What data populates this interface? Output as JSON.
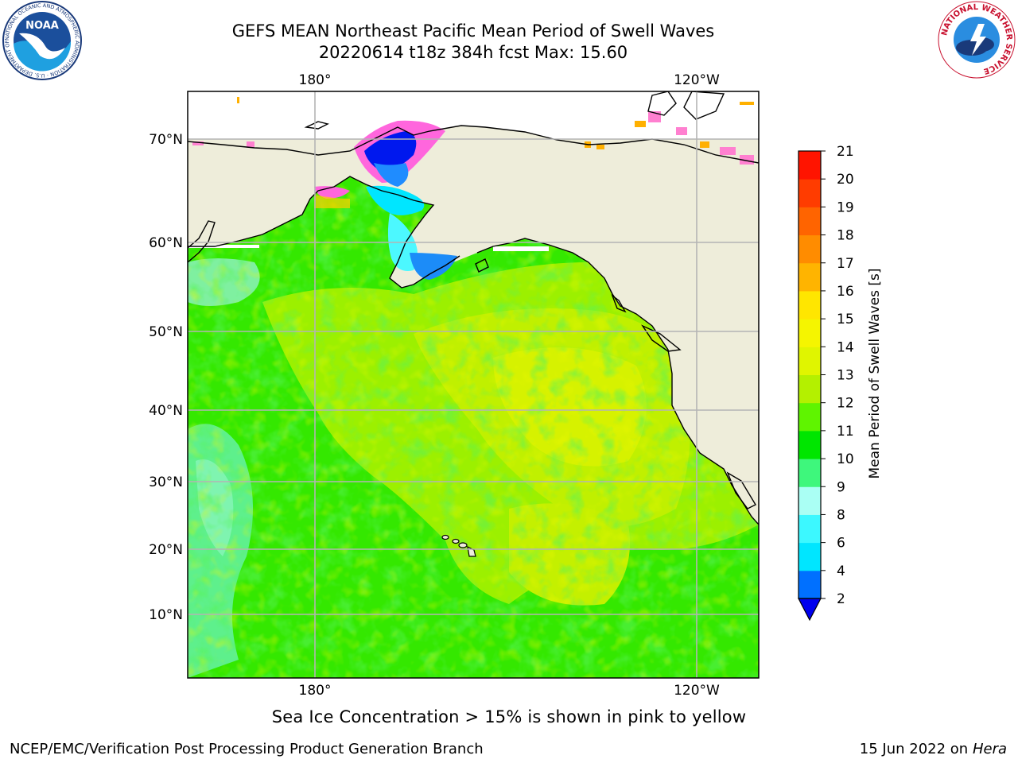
{
  "title_line1": "GEFS MEAN Northeast Pacific Mean Period of Swell Waves",
  "title_line2": "20220614 t18z 384h fcst   Max: 15.60",
  "map": {
    "lon_labels": [
      "180°",
      "120°W"
    ],
    "lat_labels": [
      "70°N",
      "60°N",
      "50°N",
      "40°N",
      "30°N",
      "20°N",
      "10°N"
    ]
  },
  "colorbar": {
    "label": "Mean Period of Swell Waves [s]",
    "ticks": [
      "2",
      "4",
      "6",
      "8",
      "9",
      "10",
      "11",
      "12",
      "13",
      "14",
      "15",
      "16",
      "17",
      "18",
      "19",
      "20",
      "21"
    ],
    "colors": [
      "#0000ee",
      "#0070ff",
      "#00e6ff",
      "#3cf8ff",
      "#aafff4",
      "#3ef77c",
      "#00e600",
      "#5ff400",
      "#b4f000",
      "#e0f500",
      "#f5f500",
      "#ffe600",
      "#ffb400",
      "#ff8c00",
      "#ff6400",
      "#ff3c00",
      "#ff1400"
    ]
  },
  "caption": "Sea Ice Concentration > 15% is shown in pink to yellow",
  "footer": {
    "left": "NCEP/EMC/Verification Post Processing Product Generation Branch",
    "right_date": "15 Jun 2022 on",
    "right_host": "Hera"
  },
  "logos": {
    "noaa_text": "NOAA",
    "noaa_ring": "NATIONAL OCEANIC AND ATMOSPHERIC ADMINISTRATION · U.S. DEPARTMENT OF COMMERCE",
    "nws_ring": "NATIONAL WEATHER SERVICE"
  }
}
